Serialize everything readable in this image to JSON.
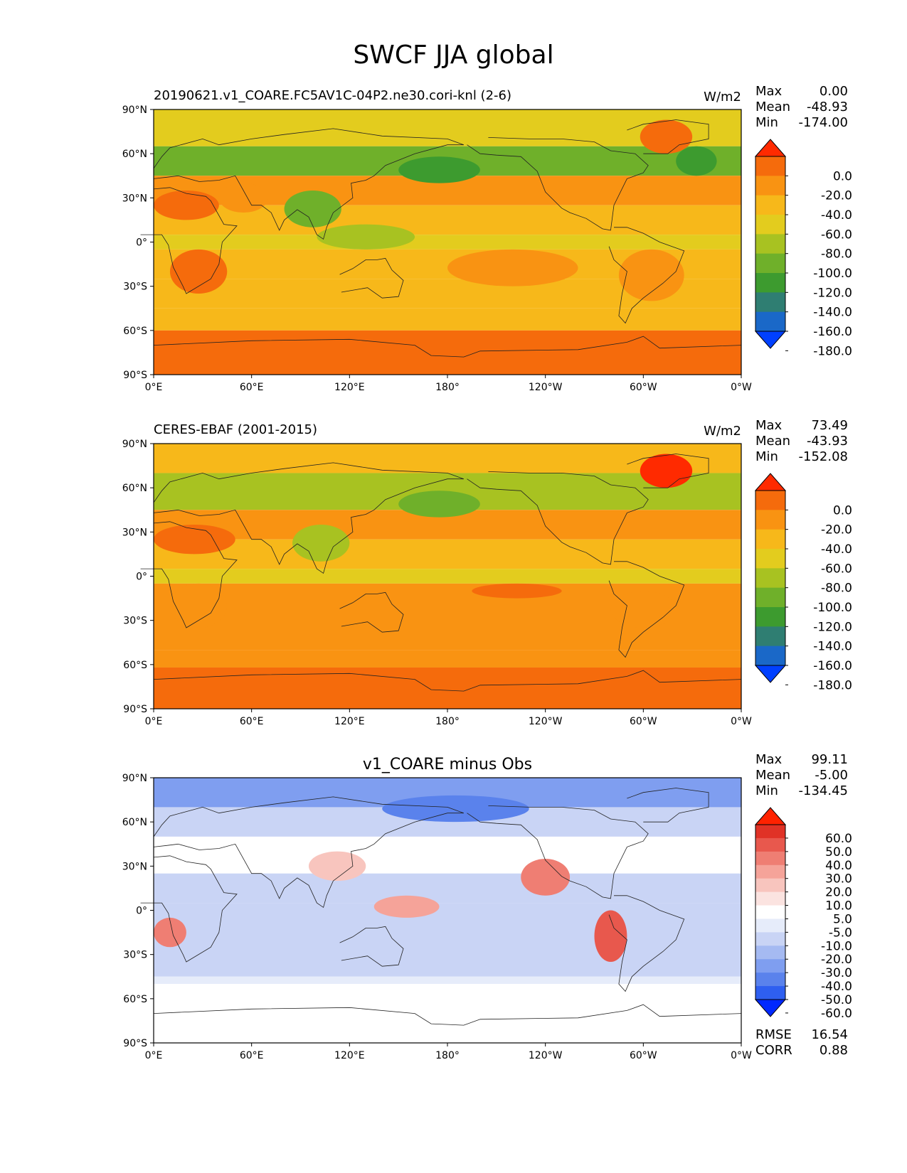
{
  "page_title": "SWCF JJA global",
  "colors": {
    "field_colormap": [
      "#0040ff",
      "#1a68c8",
      "#2f7e72",
      "#3d9b2f",
      "#6fb02a",
      "#a8c221",
      "#e3cc1e",
      "#f7b81a",
      "#f99312",
      "#f56b0c",
      "#ff2a00"
    ],
    "diff_colormap": [
      "#0028ff",
      "#2e5ff0",
      "#5a82ec",
      "#7f9ef0",
      "#a5baf2",
      "#c9d4f5",
      "#e6ecfa",
      "#ffffff",
      "#fbe3e0",
      "#f8c5be",
      "#f5a399",
      "#ef7e73",
      "#e8584d",
      "#e03226",
      "#ff2200"
    ]
  },
  "chart_data": [
    {
      "type": "heatmap",
      "panel_title": "20190621.v1_COARE.FC5AV1C-04P2.ne30.cori-knl (2-6)",
      "units": "W/m2",
      "stats": {
        "Max": "0.00",
        "Mean": "-48.93",
        "Min": "-174.00"
      },
      "xticks": [
        "0°E",
        "60°E",
        "120°E",
        "180°",
        "120°W",
        "60°W",
        "0°W"
      ],
      "yticks": [
        "90°N",
        "60°N",
        "30°N",
        "0°",
        "30°S",
        "60°S",
        "90°S"
      ],
      "colorbar_levels": [
        "0.0",
        "-20.0",
        "-40.0",
        "-60.0",
        "-80.0",
        "-100.0",
        "-120.0",
        "-140.0",
        "-160.0",
        "-180.0"
      ],
      "bands": [
        {
          "lat": [
            65,
            90
          ],
          "value": -70
        },
        {
          "lat": [
            45,
            65
          ],
          "value": -105
        },
        {
          "lat": [
            25,
            45
          ],
          "value": -40
        },
        {
          "lat": [
            5,
            25
          ],
          "value": -55
        },
        {
          "lat": [
            -5,
            5
          ],
          "value": -75
        },
        {
          "lat": [
            -25,
            -5
          ],
          "value": -50
        },
        {
          "lat": [
            -45,
            -25
          ],
          "value": -45
        },
        {
          "lat": [
            -60,
            -45
          ],
          "value": -55
        },
        {
          "lat": [
            -90,
            -60
          ],
          "value": -15
        }
      ],
      "regions": [
        {
          "lon": [
            150,
            200
          ],
          "lat": [
            40,
            58
          ],
          "value": -130
        },
        {
          "lon": [
            298,
            330
          ],
          "lat": [
            60,
            83
          ],
          "value": -20
        },
        {
          "lon": [
            320,
            345
          ],
          "lat": [
            45,
            65
          ],
          "value": -125
        },
        {
          "lon": [
            0,
            40
          ],
          "lat": [
            15,
            35
          ],
          "value": -20
        },
        {
          "lon": [
            40,
            70
          ],
          "lat": [
            20,
            40
          ],
          "value": -25
        },
        {
          "lon": [
            80,
            115
          ],
          "lat": [
            10,
            35
          ],
          "value": -110
        },
        {
          "lon": [
            10,
            45
          ],
          "lat": [
            -35,
            -5
          ],
          "value": -20
        },
        {
          "lon": [
            285,
            325
          ],
          "lat": [
            -40,
            -5
          ],
          "value": -25
        },
        {
          "lon": [
            180,
            260
          ],
          "lat": [
            -30,
            -5
          ],
          "value": -35
        },
        {
          "lon": [
            100,
            160
          ],
          "lat": [
            -5,
            12
          ],
          "value": -85
        }
      ]
    },
    {
      "type": "heatmap",
      "panel_title": "CERES-EBAF (2001-2015)",
      "units": "W/m2",
      "stats": {
        "Max": "73.49",
        "Mean": "-43.93",
        "Min": "-152.08"
      },
      "xticks": [
        "0°E",
        "60°E",
        "120°E",
        "180°",
        "120°W",
        "60°W",
        "0°W"
      ],
      "yticks": [
        "90°N",
        "60°N",
        "30°N",
        "0°",
        "30°S",
        "60°S",
        "90°S"
      ],
      "colorbar_levels": [
        "0.0",
        "-20.0",
        "-40.0",
        "-60.0",
        "-80.0",
        "-100.0",
        "-120.0",
        "-140.0",
        "-160.0",
        "-180.0"
      ],
      "bands": [
        {
          "lat": [
            70,
            90
          ],
          "value": -50
        },
        {
          "lat": [
            45,
            70
          ],
          "value": -85
        },
        {
          "lat": [
            25,
            45
          ],
          "value": -40
        },
        {
          "lat": [
            5,
            25
          ],
          "value": -55
        },
        {
          "lat": [
            -5,
            5
          ],
          "value": -65
        },
        {
          "lat": [
            -50,
            -5
          ],
          "value": -35
        },
        {
          "lat": [
            -62,
            -50
          ],
          "value": -30
        },
        {
          "lat": [
            -90,
            -62
          ],
          "value": -5
        }
      ],
      "regions": [
        {
          "lon": [
            150,
            200
          ],
          "lat": [
            40,
            58
          ],
          "value": -120
        },
        {
          "lon": [
            298,
            330
          ],
          "lat": [
            60,
            83
          ],
          "value": 0
        },
        {
          "lon": [
            0,
            50
          ],
          "lat": [
            15,
            35
          ],
          "value": -20
        },
        {
          "lon": [
            85,
            120
          ],
          "lat": [
            10,
            35
          ],
          "value": -95
        },
        {
          "lon": [
            10,
            45
          ],
          "lat": [
            -35,
            -5
          ],
          "value": -25
        },
        {
          "lon": [
            195,
            250
          ],
          "lat": [
            -15,
            -5
          ],
          "value": -15
        },
        {
          "lon": [
            280,
            320
          ],
          "lat": [
            -35,
            -10
          ],
          "value": -25
        }
      ]
    },
    {
      "type": "heatmap",
      "panel_title": "v1_COARE minus Obs",
      "stats": {
        "Max": "99.11",
        "Mean": "-5.00",
        "Min": "-134.45"
      },
      "metrics": {
        "RMSE": "16.54",
        "CORR": "0.88"
      },
      "xticks": [
        "0°E",
        "60°E",
        "120°E",
        "180°",
        "120°W",
        "60°W",
        "0°W"
      ],
      "yticks": [
        "90°N",
        "60°N",
        "30°N",
        "0°",
        "30°S",
        "60°S",
        "90°S"
      ],
      "colorbar_levels": [
        "60.0",
        "50.0",
        "40.0",
        "30.0",
        "20.0",
        "10.0",
        "5.0",
        "-5.0",
        "-10.0",
        "-20.0",
        "-30.0",
        "-40.0",
        "-50.0",
        "-60.0"
      ],
      "bands": [
        {
          "lat": [
            70,
            90
          ],
          "value": -35
        },
        {
          "lat": [
            50,
            70
          ],
          "value": -15
        },
        {
          "lat": [
            25,
            50
          ],
          "value": -5
        },
        {
          "lat": [
            5,
            25
          ],
          "value": -12
        },
        {
          "lat": [
            -45,
            5
          ],
          "value": -18
        },
        {
          "lat": [
            -50,
            -45
          ],
          "value": -8
        },
        {
          "lat": [
            -90,
            -50
          ],
          "value": 0
        }
      ],
      "regions": [
        {
          "lon": [
            140,
            230
          ],
          "lat": [
            60,
            78
          ],
          "value": -45
        },
        {
          "lon": [
            225,
            255
          ],
          "lat": [
            10,
            35
          ],
          "value": 35
        },
        {
          "lon": [
            270,
            290
          ],
          "lat": [
            -35,
            0
          ],
          "value": 40
        },
        {
          "lon": [
            0,
            20
          ],
          "lat": [
            -25,
            -5
          ],
          "value": 30
        },
        {
          "lon": [
            95,
            130
          ],
          "lat": [
            20,
            40
          ],
          "value": 15
        },
        {
          "lon": [
            135,
            175
          ],
          "lat": [
            -5,
            10
          ],
          "value": 20
        }
      ]
    }
  ]
}
